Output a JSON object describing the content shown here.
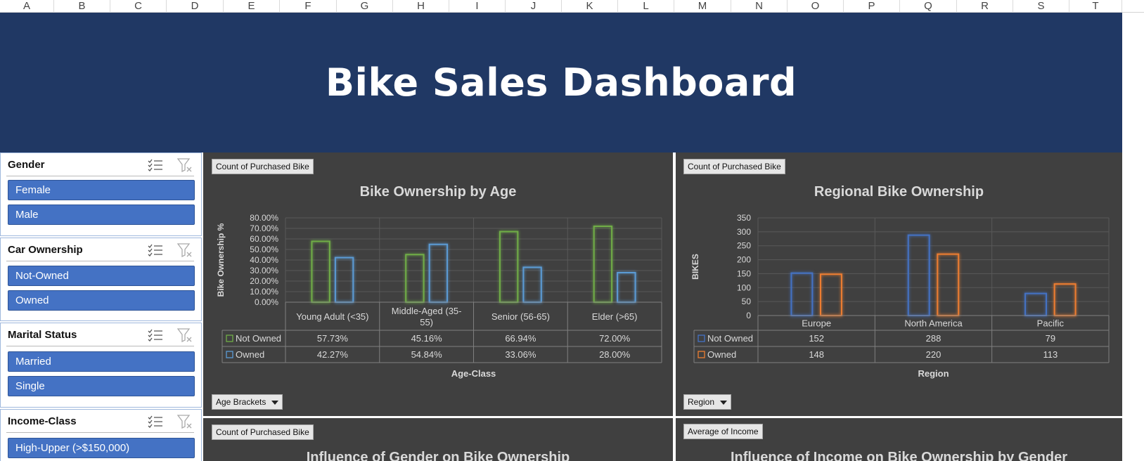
{
  "columns": [
    "A",
    "B",
    "C",
    "D",
    "E",
    "F",
    "G",
    "H",
    "I",
    "J",
    "K",
    "L",
    "M",
    "N",
    "O",
    "P",
    "Q",
    "R",
    "S",
    "T"
  ],
  "dashboard": {
    "title": "Bike Sales Dashboard"
  },
  "slicers": [
    {
      "title": "Gender",
      "items": [
        "Female",
        "Male"
      ]
    },
    {
      "title": "Car Ownership",
      "items": [
        "Not-Owned",
        "Owned"
      ]
    },
    {
      "title": "Marital Status",
      "items": [
        "Married",
        "Single"
      ]
    },
    {
      "title": "Income-Class",
      "items": [
        "High-Upper (>$150,000)"
      ]
    }
  ],
  "panels": {
    "age": {
      "value_button": "Count of Purchased Bike",
      "axis_button": "Age Brackets"
    },
    "region": {
      "value_button": "Count of Purchased Bike",
      "axis_button": "Region"
    },
    "gender": {
      "value_button": "Count of Purchased Bike",
      "title": "Influence of Gender on Bike Ownership"
    },
    "income": {
      "value_button": "Average of Income",
      "title": "Influence of Income on Bike Ownership by Gender"
    }
  },
  "colors": {
    "banner": "#203864",
    "panel": "#404040",
    "slicer_item": "#4472c4",
    "not_owned": "#70ad47",
    "owned": "#5b9bd5",
    "region_owned": "#ed7d31"
  },
  "chart_data": [
    {
      "type": "bar",
      "title": "Bike Ownership by Age",
      "xlabel": "Age-Class",
      "ylabel": "Bike Ownership %",
      "categories": [
        "Young Adult (<35)",
        "Middle-Aged (35-55)",
        "Senior (56-65)",
        "Elder (>65)"
      ],
      "category_lines": [
        [
          "Young Adult (<35)"
        ],
        [
          "Middle-Aged (35-",
          "55)"
        ],
        [
          "Senior (56-65)"
        ],
        [
          "Elder (>65)"
        ]
      ],
      "series": [
        {
          "name": "Not Owned",
          "values": [
            57.73,
            45.16,
            66.94,
            72.0
          ],
          "labels": [
            "57.73%",
            "45.16%",
            "66.94%",
            "72.00%"
          ],
          "color": "#70ad47"
        },
        {
          "name": "Owned",
          "values": [
            42.27,
            54.84,
            33.06,
            28.0
          ],
          "labels": [
            "42.27%",
            "54.84%",
            "33.06%",
            "28.00%"
          ],
          "color": "#5b9bd5"
        }
      ],
      "ylim": [
        0,
        80
      ],
      "yticks": [
        "0.00%",
        "10.00%",
        "20.00%",
        "30.00%",
        "40.00%",
        "50.00%",
        "60.00%",
        "70.00%",
        "80.00%"
      ],
      "data_table": true,
      "grid": true
    },
    {
      "type": "bar",
      "title": "Regional Bike Ownership",
      "xlabel": "Region",
      "ylabel": "BIKES",
      "categories": [
        "Europe",
        "North America",
        "Pacific"
      ],
      "category_lines": [
        [
          "Europe"
        ],
        [
          "North America"
        ],
        [
          "Pacific"
        ]
      ],
      "series": [
        {
          "name": "Not Owned",
          "values": [
            152,
            288,
            79
          ],
          "labels": [
            "152",
            "288",
            "79"
          ],
          "color": "#4472c4"
        },
        {
          "name": "Owned",
          "values": [
            148,
            220,
            113
          ],
          "labels": [
            "148",
            "220",
            "113"
          ],
          "color": "#ed7d31"
        }
      ],
      "ylim": [
        0,
        350
      ],
      "yticks": [
        "0",
        "50",
        "100",
        "150",
        "200",
        "250",
        "300",
        "350"
      ],
      "data_table": true,
      "grid": true
    }
  ]
}
